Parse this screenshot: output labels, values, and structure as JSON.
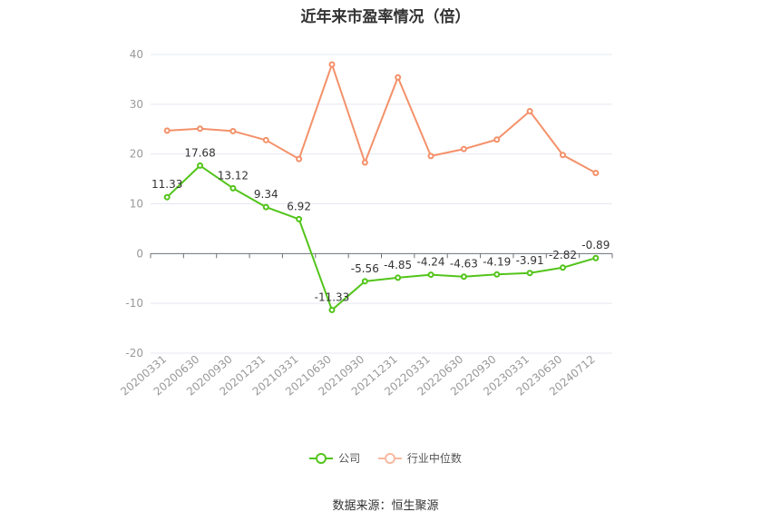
{
  "chart_data": {
    "type": "line",
    "title": "近年来市盈率情况（倍）",
    "categories": [
      "20200331",
      "20200630",
      "20200930",
      "20201231",
      "20210331",
      "20210630",
      "20210930",
      "20211231",
      "20220331",
      "20220630",
      "20220930",
      "20230331",
      "20230630",
      "20240712"
    ],
    "series": [
      {
        "name": "公司",
        "color": "#52c41a",
        "values": [
          11.33,
          17.68,
          13.12,
          9.34,
          6.92,
          -11.33,
          -5.56,
          -4.85,
          -4.24,
          -4.63,
          -4.19,
          -3.91,
          -2.82,
          -0.89
        ],
        "labels": [
          "11.33",
          "17.68",
          "13.12",
          "9.34",
          "6.92",
          "-11.33",
          "-5.56",
          "-4.85",
          "-4.24",
          "-4.63",
          "-4.19",
          "-3.91",
          "-2.82",
          "-0.89"
        ]
      },
      {
        "name": "行业中位数",
        "color": "#f4916a",
        "values": [
          24.7,
          25.1,
          24.6,
          22.8,
          19.0,
          38.0,
          18.3,
          35.4,
          19.6,
          21.0,
          22.9,
          28.6,
          19.8,
          16.2
        ]
      }
    ],
    "yticks": [
      40,
      30,
      20,
      10,
      0,
      -10,
      -20
    ],
    "ylim": [
      -20,
      40
    ],
    "grid": true,
    "legend_position": "bottom"
  },
  "legend": {
    "company_label": "公司",
    "industry_label": "行业中位数"
  },
  "footer": {
    "source_text": "数据来源：恒生聚源"
  }
}
